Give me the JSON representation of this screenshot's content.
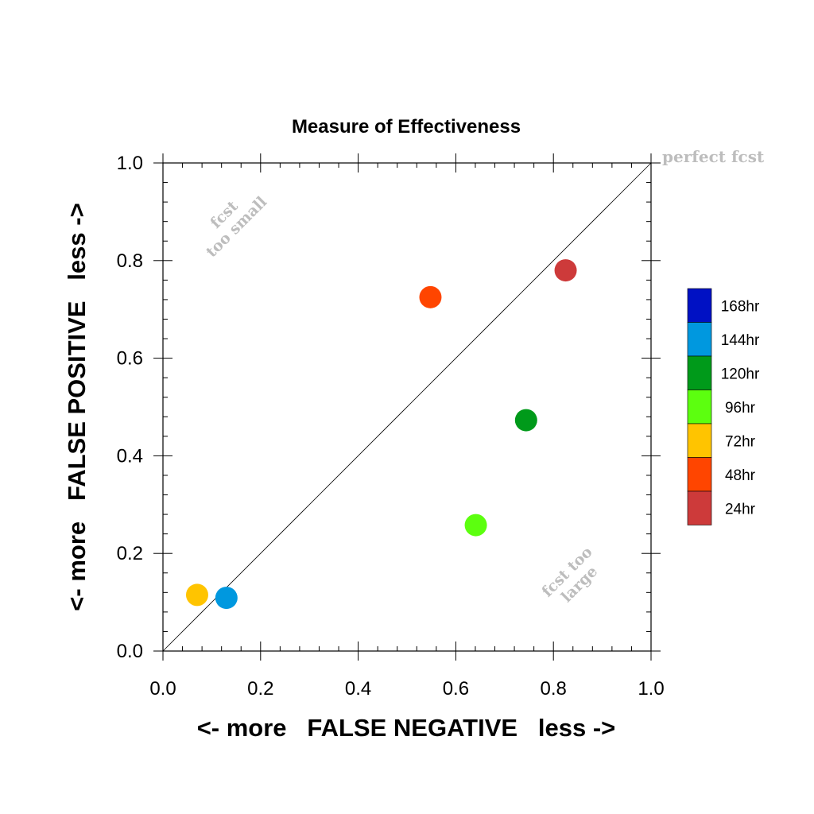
{
  "chart_data": {
    "type": "scatter",
    "title": "Measure of Effectiveness",
    "xlabel": "<- more   FALSE NEGATIVE   less ->",
    "ylabel": "<- more   FALSE POSITIVE   less ->",
    "xlim": [
      0.0,
      1.0
    ],
    "ylim": [
      0.0,
      1.0
    ],
    "x_ticks": [
      "0.0",
      "0.2",
      "0.4",
      "0.6",
      "0.8",
      "1.0"
    ],
    "y_ticks": [
      "0.0",
      "0.2",
      "0.4",
      "0.6",
      "0.8",
      "1.0"
    ],
    "grid": false,
    "reference_line": "diagonal",
    "annotations": {
      "perfect": "perfect fcst",
      "too_small_line1": "fcst",
      "too_small_line2": "too small",
      "too_large_line1": "fcst too",
      "too_large_line2": "large"
    },
    "legend": {
      "placement": "right",
      "entries": [
        {
          "label": "168hr",
          "color": "#0011c4"
        },
        {
          "label": "144hr",
          "color": "#0098df"
        },
        {
          "label": "120hr",
          "color": "#009a1a"
        },
        {
          "label": "96hr",
          "color": "#5cff0f"
        },
        {
          "label": "72hr",
          "color": "#ffc400"
        },
        {
          "label": "48hr",
          "color": "#ff4500"
        },
        {
          "label": "24hr",
          "color": "#cd3a3a"
        }
      ]
    },
    "points": [
      {
        "lead": "24hr",
        "x": 0.825,
        "y": 0.78,
        "color": "#cd3a3a"
      },
      {
        "lead": "48hr",
        "x": 0.548,
        "y": 0.725,
        "color": "#ff4500"
      },
      {
        "lead": "72hr",
        "x": 0.07,
        "y": 0.115,
        "color": "#ffc400"
      },
      {
        "lead": "96hr",
        "x": 0.641,
        "y": 0.258,
        "color": "#5cff0f"
      },
      {
        "lead": "120hr",
        "x": 0.744,
        "y": 0.473,
        "color": "#009a1a"
      },
      {
        "lead": "144hr",
        "x": 0.13,
        "y": 0.109,
        "color": "#0098df"
      }
    ]
  }
}
